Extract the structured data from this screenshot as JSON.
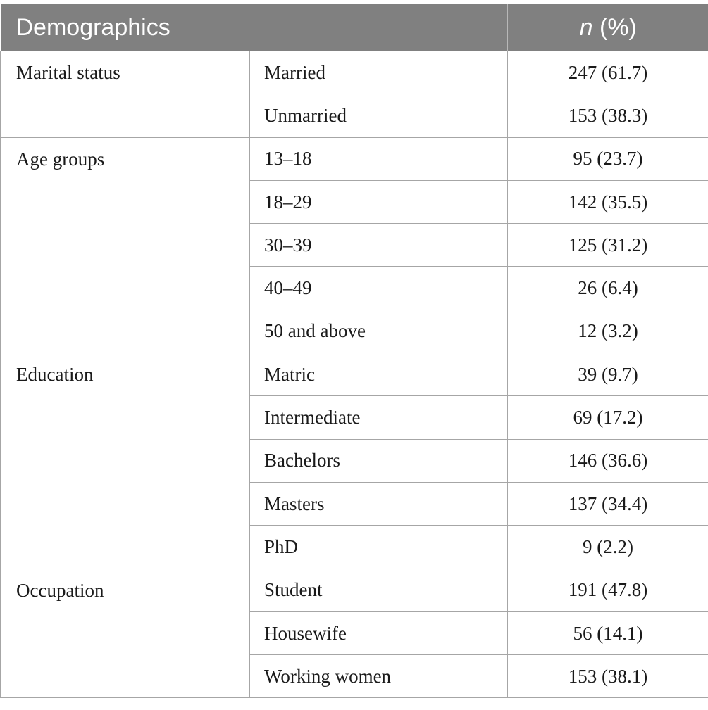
{
  "header": {
    "demographics_label": "Demographics",
    "n_label": "n",
    "pct_label": " (%)"
  },
  "groups": [
    {
      "category": "Marital status",
      "rows": [
        {
          "label": "Married",
          "value": "247 (61.7)"
        },
        {
          "label": "Unmarried",
          "value": "153 (38.3)"
        }
      ]
    },
    {
      "category": "Age groups",
      "rows": [
        {
          "label": "13–18",
          "value": "95 (23.7)"
        },
        {
          "label": "18–29",
          "value": "142 (35.5)"
        },
        {
          "label": "30–39",
          "value": "125 (31.2)"
        },
        {
          "label": "40–49",
          "value": "26 (6.4)"
        },
        {
          "label": "50 and above",
          "value": "12 (3.2)"
        }
      ]
    },
    {
      "category": "Education",
      "rows": [
        {
          "label": "Matric",
          "value": "39 (9.7)"
        },
        {
          "label": "Intermediate",
          "value": "69 (17.2)"
        },
        {
          "label": "Bachelors",
          "value": "146 (36.6)"
        },
        {
          "label": "Masters",
          "value": "137 (34.4)"
        },
        {
          "label": "PhD",
          "value": "9 (2.2)"
        }
      ]
    },
    {
      "category": "Occupation",
      "rows": [
        {
          "label": "Student",
          "value": "191 (47.8)"
        },
        {
          "label": "Housewife",
          "value": "56 (14.1)"
        },
        {
          "label": "Working women",
          "value": "153 (38.1)"
        }
      ]
    }
  ]
}
